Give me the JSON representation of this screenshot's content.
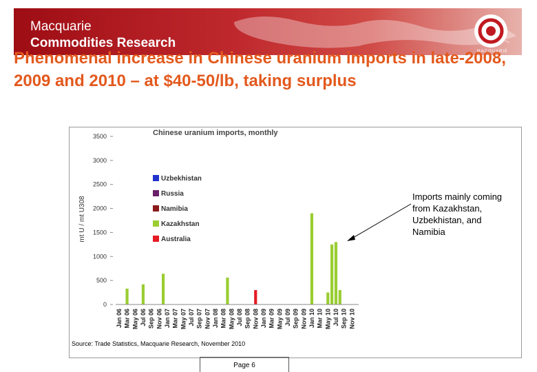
{
  "header": {
    "brand_line1": "Macquarie",
    "brand_line2": "Commodities Research",
    "logo_text": "MACQUARIE"
  },
  "slide": {
    "title": "Phenomenal increase in Chinese uranium imports in late-2008, 2009 and 2010 – at $40-50/lb, taking surplus",
    "annotation": "Imports mainly coming from Kazakhstan, Uzbekhistan, and Namibia",
    "source": "Source: Trade Statistics, Macquarie Research, November 2010",
    "page": "Page 6"
  },
  "colors": {
    "banner": "#a8141b",
    "title": "#e3591d",
    "Uzbekhistan": "#2233cc",
    "Russia": "#6a1f6a",
    "Namibia": "#8b1a1a",
    "Kazakhstan": "#9acd32",
    "Australia": "#e51b24"
  },
  "chart_data": {
    "type": "bar",
    "stacked": true,
    "title": "Chinese uranium imports, monthly",
    "xlabel": "",
    "ylabel": "mt U / mt U308",
    "ylim": [
      0,
      3500
    ],
    "yticks": [
      0,
      500,
      1000,
      1500,
      2000,
      2500,
      3000,
      3500
    ],
    "grid": false,
    "legend_position": "upper-left inside",
    "tick_labels": [
      "Jan 06",
      "Mar 06",
      "May 06",
      "Jul 06",
      "Sep 06",
      "Nov 06",
      "Jan 07",
      "Mar 07",
      "May 07",
      "Jul 07",
      "Sep 07",
      "Nov 07",
      "Jan 08",
      "Mar 08",
      "May 08",
      "Jul 08",
      "Sep 08",
      "Nov 08",
      "Jan 09",
      "Mar 09",
      "May 09",
      "Jul 09",
      "Sep 09",
      "Nov 09",
      "Jan 10",
      "Mar 10",
      "May 10",
      "Jul 10",
      "Sep 10",
      "Nov 10"
    ],
    "categories": [
      "Jan 06",
      "Feb 06",
      "Mar 06",
      "Apr 06",
      "May 06",
      "Jun 06",
      "Jul 06",
      "Aug 06",
      "Sep 06",
      "Oct 06",
      "Nov 06",
      "Dec 06",
      "Jan 07",
      "Feb 07",
      "Mar 07",
      "Apr 07",
      "May 07",
      "Jun 07",
      "Jul 07",
      "Aug 07",
      "Sep 07",
      "Oct 07",
      "Nov 07",
      "Dec 07",
      "Jan 08",
      "Feb 08",
      "Mar 08",
      "Apr 08",
      "May 08",
      "Jun 08",
      "Jul 08",
      "Aug 08",
      "Sep 08",
      "Oct 08",
      "Nov 08",
      "Dec 08",
      "Jan 09",
      "Feb 09",
      "Mar 09",
      "Apr 09",
      "May 09",
      "Jun 09",
      "Jul 09",
      "Aug 09",
      "Sep 09",
      "Oct 09",
      "Nov 09",
      "Dec 09",
      "Jan 10",
      "Feb 10",
      "Mar 10",
      "Apr 10",
      "May 10",
      "Jun 10",
      "Jul 10",
      "Aug 10",
      "Sep 10",
      "Oct 10",
      "Nov 10",
      "Dec 10"
    ],
    "series": [
      {
        "name": "Australia",
        "values": [
          0,
          0,
          0,
          0,
          0,
          0,
          0,
          0,
          0,
          0,
          0,
          0,
          0,
          0,
          0,
          0,
          0,
          0,
          0,
          0,
          0,
          0,
          0,
          0,
          0,
          0,
          0,
          0,
          0,
          0,
          0,
          0,
          0,
          0,
          300,
          0,
          0,
          0,
          0,
          0,
          0,
          0,
          0,
          0,
          0,
          0,
          0,
          0,
          0,
          0,
          0,
          0,
          0,
          0,
          0,
          0,
          0,
          0,
          0,
          0
        ]
      },
      {
        "name": "Kazakhstan",
        "values": [
          0,
          0,
          330,
          0,
          0,
          0,
          420,
          0,
          0,
          0,
          0,
          640,
          0,
          0,
          0,
          0,
          0,
          0,
          0,
          0,
          0,
          0,
          0,
          0,
          0,
          0,
          0,
          560,
          0,
          0,
          0,
          0,
          0,
          0,
          0,
          0,
          0,
          0,
          0,
          0,
          0,
          0,
          0,
          0,
          0,
          0,
          0,
          0,
          1900,
          0,
          0,
          0,
          250,
          1250,
          1300,
          300,
          0,
          0,
          0,
          0
        ]
      },
      {
        "name": "Namibia",
        "values": [
          0,
          0,
          0,
          0,
          0,
          0,
          0,
          0,
          0,
          0,
          0,
          0,
          0,
          0,
          0,
          0,
          0,
          0,
          0,
          0,
          0,
          0,
          0,
          0,
          0,
          0,
          0,
          0,
          0,
          0,
          0,
          0,
          0,
          0,
          0,
          0,
          0,
          0,
          0,
          0,
          0,
          0,
          0,
          0,
          0,
          0,
          0,
          0,
          0,
          0,
          0,
          0,
          0,
          0,
          0,
          0,
          0,
          0,
          0,
          0
        ]
      },
      {
        "name": "Russia",
        "values": [
          0,
          0,
          0,
          0,
          0,
          0,
          0,
          0,
          0,
          0,
          0,
          0,
          0,
          0,
          0,
          0,
          0,
          0,
          0,
          0,
          0,
          0,
          0,
          0,
          0,
          0,
          0,
          0,
          0,
          0,
          0,
          0,
          0,
          0,
          0,
          0,
          0,
          0,
          0,
          0,
          0,
          0,
          0,
          0,
          0,
          0,
          0,
          0,
          0,
          0,
          0,
          0,
          0,
          0,
          0,
          0,
          0,
          0,
          0,
          0
        ]
      },
      {
        "name": "Uzbekhistan",
        "values": [
          0,
          0,
          0,
          0,
          0,
          0,
          0,
          0,
          0,
          0,
          0,
          0,
          0,
          0,
          0,
          0,
          0,
          0,
          0,
          0,
          0,
          0,
          0,
          0,
          0,
          0,
          0,
          0,
          0,
          0,
          0,
          0,
          0,
          0,
          0,
          0,
          0,
          0,
          0,
          0,
          0,
          0,
          0,
          0,
          0,
          0,
          0,
          0,
          0,
          0,
          0,
          0,
          0,
          0,
          0,
          0,
          0,
          0,
          0,
          0
        ]
      }
    ]
  }
}
